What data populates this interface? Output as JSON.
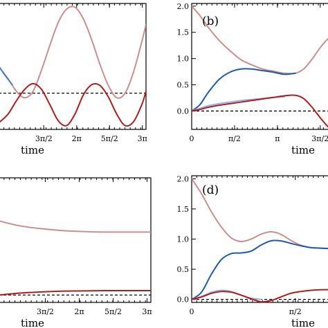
{
  "chart_data": [
    {
      "type": "line",
      "panel_label": "",
      "xlabel": "time",
      "ylabel": "",
      "xlim": [
        2.55,
        9.6
      ],
      "ylim": [
        -0.95,
        2.35
      ],
      "x_tick_values": [
        4.712,
        6.283,
        7.854,
        9.425
      ],
      "x_tick_labels": [
        "3π/2",
        "2π",
        "5π/2",
        "3π"
      ],
      "y_tick_values": [],
      "y_tick_labels": [],
      "reference_line": 0,
      "series": [
        {
          "color": "#c98e8e",
          "x": [
            2.55,
            3.0,
            3.4,
            3.8,
            4.2,
            4.6,
            5.0,
            5.4,
            5.8,
            6.2,
            6.6,
            7.0,
            7.4,
            7.8,
            8.2,
            8.6,
            9.0,
            9.4,
            9.6
          ],
          "y": [
            0.7,
            0.38,
            0.05,
            -0.12,
            0.05,
            0.6,
            1.25,
            1.85,
            2.2,
            2.25,
            1.95,
            1.4,
            0.75,
            0.2,
            -0.12,
            0.0,
            0.55,
            1.35,
            1.8
          ]
        },
        {
          "color": "#4a7ec9",
          "x": [
            2.55,
            2.75,
            2.95,
            3.2
          ],
          "y": [
            0.72,
            0.55,
            0.4,
            0.22
          ]
        },
        {
          "color": "#b01c1c",
          "x": [
            2.55,
            3.0,
            3.4,
            3.8,
            4.2,
            4.6,
            5.0,
            5.4,
            5.8,
            6.2,
            6.6,
            7.0,
            7.4,
            7.8,
            8.2,
            8.6,
            9.0,
            9.4,
            9.6
          ],
          "y": [
            -0.78,
            -0.55,
            -0.2,
            0.1,
            0.25,
            0.1,
            -0.3,
            -0.72,
            -0.85,
            -0.55,
            -0.05,
            0.22,
            0.2,
            -0.1,
            -0.55,
            -0.85,
            -0.75,
            -0.3,
            0.05
          ]
        }
      ]
    },
    {
      "type": "line",
      "panel_label": "(b)",
      "xlabel": "time",
      "ylabel": "",
      "xlim": [
        0,
        5.2
      ],
      "ylim": [
        -0.35,
        2.05
      ],
      "x_tick_values": [
        0,
        1.5708,
        3.1416,
        4.7124
      ],
      "x_tick_labels": [
        "0",
        "π/2",
        "π",
        "3π/2"
      ],
      "y_tick_values": [
        0,
        0.5,
        1.0,
        1.5,
        2.0
      ],
      "y_tick_labels": [
        "0.0",
        "0.5",
        "1.0",
        "1.5",
        "2.0"
      ],
      "reference_line": 0,
      "series": [
        {
          "color": "#c98e8e",
          "x": [
            0,
            0.3,
            0.6,
            1.0,
            1.4,
            1.8,
            2.2,
            2.6,
            3.0,
            3.4,
            3.8,
            4.1,
            4.4,
            4.7,
            5.0,
            5.2
          ],
          "y": [
            2.0,
            1.82,
            1.6,
            1.35,
            1.15,
            0.98,
            0.88,
            0.8,
            0.76,
            0.72,
            0.72,
            0.8,
            0.98,
            1.2,
            1.38,
            1.45
          ]
        },
        {
          "color": "#1f5aa6",
          "x": [
            0,
            0.3,
            0.6,
            1.0,
            1.4,
            1.8,
            2.2,
            2.6,
            3.0,
            3.4,
            3.8
          ],
          "y": [
            0.0,
            0.12,
            0.35,
            0.6,
            0.74,
            0.8,
            0.8,
            0.77,
            0.74,
            0.7,
            0.72
          ]
        },
        {
          "color": "#8fb4e6",
          "x": [
            0,
            0.3,
            0.6,
            1.0,
            1.4,
            1.8,
            2.2,
            2.6,
            3.0,
            3.4
          ],
          "y": [
            0.0,
            0.05,
            0.1,
            0.14,
            0.17,
            0.2,
            0.22,
            0.24,
            0.26,
            0.27
          ]
        },
        {
          "color": "#b01c1c",
          "x": [
            0,
            0.3,
            0.6,
            1.0,
            1.4,
            1.8,
            2.2,
            2.6,
            3.0,
            3.4,
            3.8,
            4.1,
            4.4,
            4.7,
            5.0,
            5.2
          ],
          "y": [
            0.0,
            0.03,
            0.07,
            0.11,
            0.14,
            0.17,
            0.2,
            0.23,
            0.26,
            0.29,
            0.3,
            0.24,
            0.08,
            -0.12,
            -0.3,
            -0.36
          ]
        }
      ]
    },
    {
      "type": "line",
      "panel_label": "",
      "xlabel": "time",
      "ylabel": "",
      "xlim": [
        2.55,
        9.6
      ],
      "ylim": [
        -0.15,
        2.4
      ],
      "x_tick_values": [
        4.712,
        6.283,
        7.854,
        9.425
      ],
      "x_tick_labels": [
        "3π/2",
        "2π",
        "5π/2",
        "3π"
      ],
      "y_tick_values": [],
      "y_tick_labels": [],
      "reference_line": 0,
      "series": [
        {
          "color": "#c98e8e",
          "x": [
            2.55,
            3.5,
            4.5,
            5.5,
            6.5,
            7.5,
            8.5,
            9.6
          ],
          "y": [
            1.52,
            1.42,
            1.36,
            1.32,
            1.3,
            1.29,
            1.29,
            1.29
          ]
        },
        {
          "color": "#b01c1c",
          "x": [
            2.55,
            3.5,
            4.5,
            5.5,
            6.5,
            7.5,
            8.5,
            9.6
          ],
          "y": [
            0.0,
            0.04,
            0.065,
            0.08,
            0.085,
            0.09,
            0.09,
            0.09
          ]
        }
      ]
    },
    {
      "type": "line",
      "panel_label": "(d)",
      "xlabel": "time",
      "ylabel": "",
      "xlim": [
        0,
        2.15
      ],
      "ylim": [
        -0.05,
        2.05
      ],
      "x_tick_values": [
        0,
        1.5708
      ],
      "x_tick_labels": [
        "0",
        "π/2"
      ],
      "y_tick_values": [
        0,
        0.5,
        1.0,
        1.5,
        2.0
      ],
      "y_tick_labels": [
        "0.0",
        "0.5",
        "1.0",
        "1.5",
        "2.0"
      ],
      "reference_line": 0,
      "series": [
        {
          "color": "#c98e8e",
          "x": [
            0,
            0.15,
            0.3,
            0.45,
            0.6,
            0.75,
            0.9,
            1.05,
            1.2,
            1.35,
            1.5,
            1.65,
            1.8,
            1.95,
            2.15
          ],
          "y": [
            2.0,
            1.75,
            1.45,
            1.2,
            1.02,
            0.96,
            1.0,
            1.08,
            1.12,
            1.08,
            0.98,
            0.9,
            0.86,
            0.85,
            0.84
          ]
        },
        {
          "color": "#1f5aa6",
          "x": [
            0,
            0.15,
            0.3,
            0.45,
            0.6,
            0.75,
            0.9,
            1.05,
            1.2,
            1.35,
            1.5,
            1.65,
            1.8,
            1.95,
            2.15
          ],
          "y": [
            0.0,
            0.12,
            0.42,
            0.66,
            0.76,
            0.77,
            0.8,
            0.9,
            0.97,
            0.97,
            0.93,
            0.89,
            0.86,
            0.85,
            0.84
          ]
        },
        {
          "color": "#8fb4e6",
          "x": [
            0,
            0.15,
            0.3,
            0.45,
            0.6,
            0.75,
            0.9,
            1.05
          ],
          "y": [
            0.0,
            0.05,
            0.12,
            0.15,
            0.13,
            0.07,
            0.02,
            0.0
          ]
        },
        {
          "color": "#b01c1c",
          "x": [
            0,
            0.15,
            0.3,
            0.45,
            0.6,
            0.75,
            0.9,
            1.05,
            1.2,
            1.35,
            1.5,
            1.65,
            1.8,
            1.95,
            2.15
          ],
          "y": [
            0.0,
            0.04,
            0.1,
            0.13,
            0.12,
            0.07,
            0.01,
            -0.04,
            -0.02,
            0.04,
            0.1,
            0.13,
            0.15,
            0.16,
            0.16
          ]
        }
      ]
    }
  ]
}
